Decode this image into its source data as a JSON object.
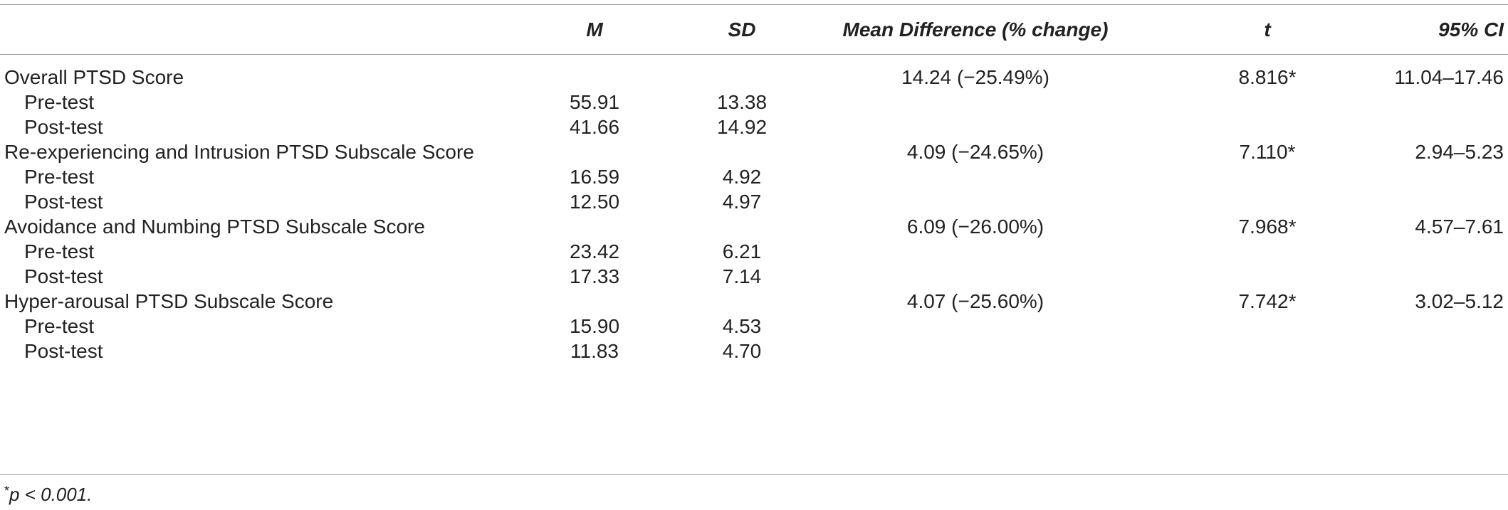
{
  "headers": {
    "label": "",
    "m": "M",
    "sd": "SD",
    "mean_diff": "Mean Difference (% change)",
    "t": "t",
    "ci": "95% CI"
  },
  "rows": [
    {
      "label": "Overall PTSD Score",
      "m": "",
      "sd": "",
      "mean_diff": "14.24 (−25.49%)",
      "t": "8.816*",
      "ci": "11.04–17.46"
    },
    {
      "label": "Pre-test",
      "m": "55.91",
      "sd": "13.38",
      "mean_diff": "",
      "t": "",
      "ci": ""
    },
    {
      "label": "Post-test",
      "m": "41.66",
      "sd": "14.92",
      "mean_diff": "",
      "t": "",
      "ci": ""
    },
    {
      "label": "Re-experiencing and Intrusion PTSD Subscale Score",
      "m": "",
      "sd": "",
      "mean_diff": "4.09 (−24.65%)",
      "t": "7.110*",
      "ci": "2.94–5.23"
    },
    {
      "label": "Pre-test",
      "m": "16.59",
      "sd": "4.92",
      "mean_diff": "",
      "t": "",
      "ci": ""
    },
    {
      "label": "Post-test",
      "m": "12.50",
      "sd": "4.97",
      "mean_diff": "",
      "t": "",
      "ci": ""
    },
    {
      "label": "Avoidance and Numbing PTSD Subscale Score",
      "m": "",
      "sd": "",
      "mean_diff": "6.09 (−26.00%)",
      "t": "7.968*",
      "ci": "4.57–7.61"
    },
    {
      "label": "Pre-test",
      "m": "23.42",
      "sd": "6.21",
      "mean_diff": "",
      "t": "",
      "ci": ""
    },
    {
      "label": "Post-test",
      "m": "17.33",
      "sd": "7.14",
      "mean_diff": "",
      "t": "",
      "ci": ""
    },
    {
      "label": "Hyper-arousal PTSD Subscale Score",
      "m": "",
      "sd": "",
      "mean_diff": "4.07 (−25.60%)",
      "t": "7.742*",
      "ci": "3.02–5.12"
    },
    {
      "label": "Pre-test",
      "m": "15.90",
      "sd": "4.53",
      "mean_diff": "",
      "t": "",
      "ci": ""
    },
    {
      "label": "Post-test",
      "m": "11.83",
      "sd": "4.70",
      "mean_diff": "",
      "t": "",
      "ci": ""
    }
  ],
  "footnote": {
    "marker": "*",
    "text": "p < 0.001."
  }
}
